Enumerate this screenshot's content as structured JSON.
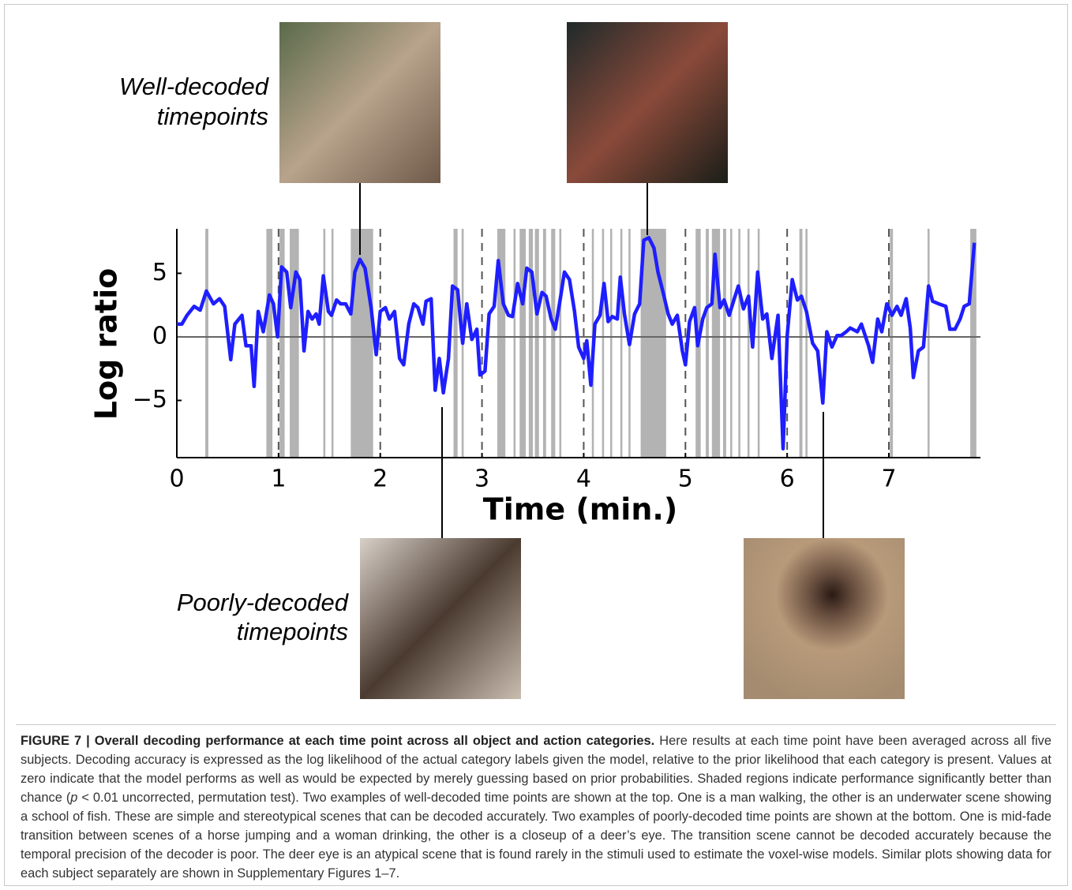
{
  "figure": {
    "top_label": [
      "Well-decoded",
      "timepoints"
    ],
    "bottom_label": [
      "Poorly-decoded",
      "timepoints"
    ]
  },
  "chart_data": {
    "type": "line",
    "xlabel": "Time (min.)",
    "ylabel": "Log ratio",
    "x": [
      0,
      0.05,
      0.1,
      0.17,
      0.23,
      0.29,
      0.36,
      0.42,
      0.47,
      0.53,
      0.57,
      0.64,
      0.68,
      0.73,
      0.76,
      0.8,
      0.85,
      0.91,
      0.95,
      0.99,
      1.03,
      1.08,
      1.12,
      1.17,
      1.21,
      1.25,
      1.29,
      1.33,
      1.37,
      1.4,
      1.44,
      1.49,
      1.52,
      1.57,
      1.61,
      1.66,
      1.71,
      1.75,
      1.8,
      1.85,
      1.91,
      1.96,
      2.0,
      2.05,
      2.09,
      2.14,
      2.19,
      2.23,
      2.28,
      2.33,
      2.37,
      2.42,
      2.45,
      2.5,
      2.54,
      2.58,
      2.62,
      2.67,
      2.71,
      2.76,
      2.81,
      2.85,
      2.9,
      2.95,
      2.98,
      3.03,
      3.07,
      3.12,
      3.16,
      3.21,
      3.26,
      3.3,
      3.35,
      3.4,
      3.44,
      3.49,
      3.54,
      3.59,
      3.63,
      3.68,
      3.72,
      3.77,
      3.81,
      3.86,
      3.91,
      3.95,
      4.0,
      4.03,
      4.07,
      4.11,
      4.16,
      4.2,
      4.24,
      4.28,
      4.33,
      4.36,
      4.4,
      4.45,
      4.5,
      4.55,
      4.59,
      4.64,
      4.69,
      4.73,
      4.78,
      4.83,
      4.87,
      4.92,
      4.97,
      5.0,
      5.04,
      5.09,
      5.12,
      5.17,
      5.21,
      5.26,
      5.29,
      5.34,
      5.38,
      5.43,
      5.48,
      5.52,
      5.57,
      5.62,
      5.66,
      5.71,
      5.76,
      5.8,
      5.85,
      5.91,
      5.96,
      6.0,
      6.05,
      6.1,
      6.14,
      6.19,
      6.25,
      6.3,
      6.35,
      6.39,
      6.44,
      6.49,
      6.53,
      6.58,
      6.62,
      6.69,
      6.73,
      6.8,
      6.84,
      6.89,
      6.93,
      6.98,
      7.03,
      7.08,
      7.12,
      7.17,
      7.21,
      7.24,
      7.29,
      7.34,
      7.39,
      7.43,
      7.49,
      7.56,
      7.6,
      7.65,
      7.7,
      7.74,
      7.79,
      7.84
    ],
    "series": [
      {
        "color": "#1e1eff",
        "values": [
          1.0,
          1.0,
          1.7,
          2.4,
          2.1,
          3.6,
          2.6,
          3.0,
          2.4,
          -1.8,
          1.0,
          1.7,
          -0.7,
          -0.7,
          -3.9,
          2.0,
          0.4,
          3.3,
          2.6,
          0,
          5.5,
          5.1,
          2.3,
          5.1,
          4.5,
          -1.1,
          2.0,
          1.4,
          1.8,
          1.0,
          4.8,
          2.0,
          1.7,
          2.9,
          2.6,
          2.6,
          1.8,
          5.1,
          6.1,
          5.4,
          2.3,
          -1.4,
          2.0,
          2.3,
          1.4,
          2.0,
          -1.7,
          -2.2,
          1.0,
          2.6,
          2.3,
          1.0,
          2.8,
          3.0,
          -4.2,
          -1.7,
          -4.4,
          -1.7,
          4.0,
          3.7,
          -0.5,
          2.6,
          -0.2,
          0.6,
          -3.0,
          -2.7,
          1.8,
          2.4,
          6.0,
          2.6,
          1.7,
          1.6,
          4.2,
          2.6,
          5.4,
          5.1,
          1.8,
          3.5,
          3.2,
          1.4,
          0.6,
          3.0,
          5.1,
          4.5,
          2.0,
          -0.8,
          -1.7,
          -0.3,
          -3.8,
          1.0,
          1.7,
          4.2,
          1.2,
          1.6,
          1.4,
          4.7,
          1.8,
          -0.6,
          1.8,
          2.6,
          7.6,
          7.8,
          7.0,
          5.1,
          3.5,
          1.8,
          1.0,
          1.7,
          -1.1,
          -2.2,
          1.2,
          2.3,
          -0.7,
          1.4,
          2.3,
          2.6,
          6.5,
          2.3,
          2.9,
          1.7,
          3.0,
          4.0,
          2.2,
          3.2,
          -0.8,
          5.1,
          1.4,
          1.8,
          -1.7,
          1.7,
          -8.8,
          0.1,
          4.5,
          2.9,
          3.2,
          2.0,
          -0.5,
          -1.1,
          -5.2,
          0.4,
          -0.8,
          0.1,
          0.1,
          0.4,
          0.7,
          0.4,
          1.0,
          -0.7,
          -2.0,
          1.4,
          0.4,
          2.6,
          1.7,
          2.4,
          1.7,
          3.0,
          0.7,
          -3.2,
          -1.1,
          -0.8,
          4.0,
          2.8,
          2.6,
          2.4,
          0.6,
          0.6,
          1.4,
          2.4,
          2.6,
          7.4
        ]
      }
    ],
    "xlim": [
      0,
      7.9
    ],
    "ylim": [
      -9.5,
      8.5
    ],
    "xticks": [
      0,
      1,
      2,
      3,
      4,
      5,
      6,
      7
    ],
    "yticks": [
      {
        "value": -5,
        "label": "−5"
      },
      0,
      5
    ],
    "zero_line": true,
    "dashed_minute_lines": true,
    "shade_color": "#b3b3b3",
    "shaded_regions": [
      [
        0.28,
        0.31
      ],
      [
        0.88,
        0.94
      ],
      [
        1.01,
        1.06
      ],
      [
        1.11,
        1.2
      ],
      [
        1.44,
        1.46
      ],
      [
        1.52,
        1.54
      ],
      [
        1.71,
        1.93
      ],
      [
        2.72,
        2.76
      ],
      [
        2.8,
        2.82
      ],
      [
        3.15,
        3.23
      ],
      [
        3.31,
        3.33
      ],
      [
        3.37,
        3.43
      ],
      [
        3.46,
        3.5
      ],
      [
        3.52,
        3.56
      ],
      [
        3.6,
        3.63
      ],
      [
        3.68,
        3.72
      ],
      [
        3.76,
        3.78
      ],
      [
        4.08,
        4.1
      ],
      [
        4.18,
        4.2
      ],
      [
        4.26,
        4.28
      ],
      [
        4.36,
        4.38
      ],
      [
        4.44,
        4.46
      ],
      [
        4.56,
        4.81
      ],
      [
        5.1,
        5.15
      ],
      [
        5.2,
        5.23
      ],
      [
        5.26,
        5.34
      ],
      [
        5.37,
        5.4
      ],
      [
        5.44,
        5.46
      ],
      [
        5.52,
        5.54
      ],
      [
        5.61,
        5.63
      ],
      [
        5.71,
        5.73
      ],
      [
        6.12,
        6.15
      ],
      [
        6.18,
        6.2
      ],
      [
        7.01,
        7.04
      ],
      [
        7.38,
        7.4
      ],
      [
        7.8,
        7.86
      ]
    ]
  },
  "caption": {
    "label": "FIGURE 7 | Overall decoding performance at each time point across all object and action categories.",
    "body": [
      " Here results at each time point have been averaged across all five subjects. Decoding accuracy is expressed as the log likelihood of the actual category labels given the model, relative to the prior likelihood that each category is present. Values at zero indicate that the model performs as well as would be expected by merely guessing based on prior probabilities. Shaded regions indicate performance significantly better than chance (",
      "p",
      " < 0.01 uncorrected, permutation test). Two examples of well-decoded time points are shown at the top. One is a man walking, the other is an underwater scene showing a school of fish. These are simple and stereotypical scenes that can be decoded accurately. Two examples of poorly-decoded time points are shown at the bottom. One is mid-fade transition between scenes of a horse jumping and a woman drinking, the other is a closeup of a deer’s eye. The transition scene cannot be decoded accurately because the temporal precision of the decoder is poor. The deer eye is an atypical scene that is found rarely in the stimuli used to estimate the voxel-wise models. Similar plots showing data for each subject separately are shown in Supplementary Figures 1–7."
    ]
  }
}
